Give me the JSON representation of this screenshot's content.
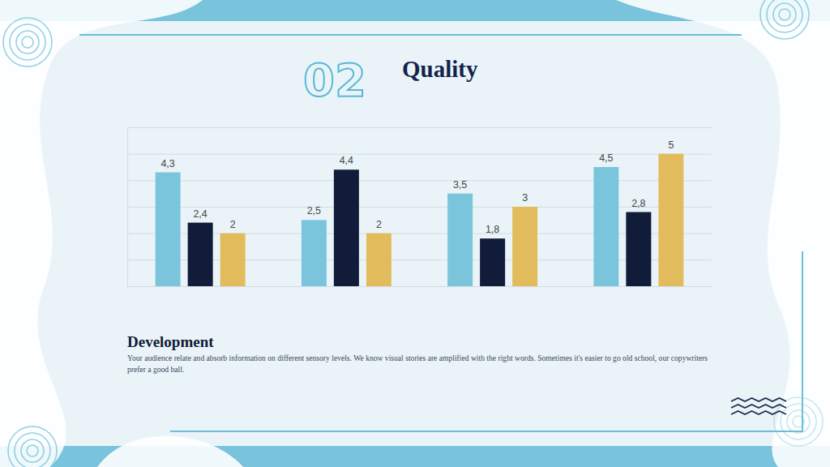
{
  "slide": {
    "number": "02",
    "heading": "Development",
    "text": "Your audience relate and absorb information on different sensory levels. We know visual stories are amplified with the right words. Sometimes it's easier to go old school, our copywriters prefer a good ball."
  },
  "chart_data": {
    "type": "bar",
    "title": "Quality",
    "categories": [
      null,
      null,
      null,
      null
    ],
    "series": [
      {
        "color": "#7ac5dc",
        "values": [
          4.3,
          2.5,
          3.5,
          4.5
        ],
        "value_labels": [
          "4,3",
          "2,5",
          "3,5",
          "4,5"
        ]
      },
      {
        "color": "#101c3a",
        "values": [
          2.4,
          4.4,
          1.8,
          2.8
        ],
        "value_labels": [
          "2,4",
          "4,4",
          "1,8",
          "2,8"
        ]
      },
      {
        "color": "#e2bc5c",
        "values": [
          2,
          2,
          3,
          5
        ]
      }
    ],
    "ylim": [
      0,
      6
    ],
    "yticks": [
      0,
      1,
      2,
      3,
      4,
      5,
      6
    ],
    "grid": true,
    "data_labels": true,
    "tick_labels": false
  }
}
